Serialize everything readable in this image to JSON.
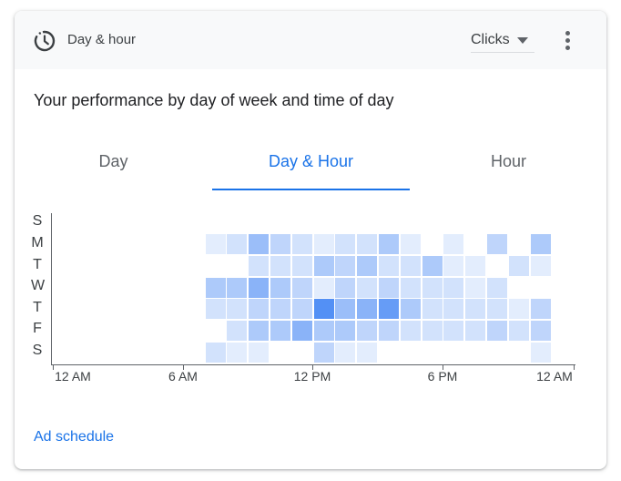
{
  "header": {
    "title": "Day & hour",
    "icon": "schedule-icon",
    "metric": "Clicks"
  },
  "subtitle": "Your performance by day of week and time of day",
  "tabs": [
    "Day",
    "Day & Hour",
    "Hour"
  ],
  "active_tab": 1,
  "days": [
    "S",
    "M",
    "T",
    "W",
    "T",
    "F",
    "S"
  ],
  "x_ticks": [
    "12 AM",
    "6 AM",
    "12 PM",
    "6 PM",
    "12 AM"
  ],
  "link": "Ad schedule",
  "colors": {
    "accent": "#1a73e8",
    "cell_rgb": [
      66,
      133,
      244
    ]
  },
  "heatmap": [
    [
      0,
      0,
      0,
      0,
      0,
      0,
      0,
      0,
      0,
      0,
      0,
      0,
      0,
      0,
      0,
      0,
      0,
      0,
      0,
      0,
      0,
      0,
      0,
      0
    ],
    [
      0,
      0,
      0,
      0,
      0,
      0,
      0,
      1,
      2,
      5,
      3,
      2,
      1,
      2,
      2,
      4,
      1,
      0,
      1,
      0,
      3,
      0,
      4,
      0
    ],
    [
      0,
      0,
      0,
      0,
      0,
      0,
      0,
      0,
      0,
      2,
      2,
      2,
      4,
      3,
      4,
      2,
      2,
      4,
      1,
      1,
      0,
      2,
      1,
      0
    ],
    [
      0,
      0,
      0,
      0,
      0,
      0,
      0,
      4,
      4,
      6,
      4,
      3,
      1,
      3,
      2,
      3,
      2,
      2,
      2,
      1,
      2,
      0,
      0,
      0
    ],
    [
      0,
      0,
      0,
      0,
      0,
      0,
      0,
      2,
      2,
      3,
      3,
      3,
      9,
      5,
      6,
      8,
      4,
      2,
      2,
      2,
      2,
      1,
      3,
      0
    ],
    [
      0,
      0,
      0,
      0,
      0,
      0,
      0,
      0,
      2,
      4,
      4,
      6,
      4,
      4,
      3,
      3,
      2,
      2,
      2,
      2,
      3,
      2,
      3,
      0
    ],
    [
      0,
      0,
      0,
      0,
      0,
      0,
      0,
      2,
      1,
      1,
      0,
      0,
      3,
      1,
      1,
      0,
      0,
      0,
      0,
      0,
      0,
      0,
      1,
      0
    ]
  ]
}
